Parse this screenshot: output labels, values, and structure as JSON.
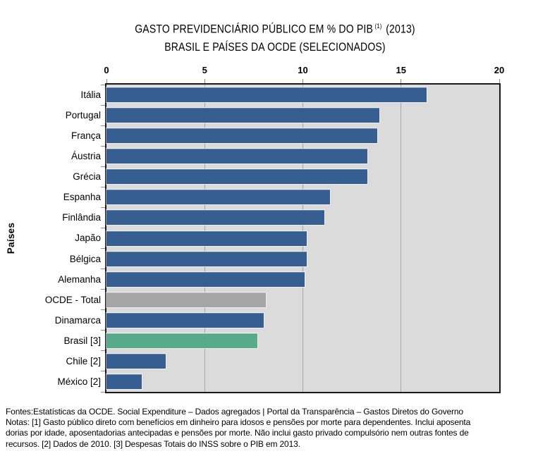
{
  "title": {
    "line1_prefix": "GASTO PREVIDENCIÁRIO PÚBLICO EM % DO PIB",
    "line1_superscript": "(1)",
    "line1_suffix": "(2013)",
    "line2": "BRASIL E PAÍSES DA OCDE (SELECIONADOS)"
  },
  "chart_data": {
    "type": "bar",
    "orientation": "horizontal",
    "title": "GASTO PREVIDENCIÁRIO PÚBLICO EM % DO PIB (1) (2013) BRASIL E PAÍSES DA OCDE (SELECIONADOS)",
    "xlabel": "",
    "ylabel": "Países",
    "xlim": [
      0,
      20
    ],
    "x_ticks": [
      0,
      5,
      10,
      15,
      20
    ],
    "gridlines": [
      5,
      10,
      15
    ],
    "grid": true,
    "legend": false,
    "categories": [
      "Itália",
      "Portugal",
      "França",
      "Áustria",
      "Grécia",
      "Espanha",
      "Finlândia",
      "Japão",
      "Bélgica",
      "Alemanha",
      "OCDE - Total",
      "Dinamarca",
      "Brasil [3]",
      "Chile [2]",
      "México [2]"
    ],
    "values": [
      16.3,
      13.9,
      13.8,
      13.3,
      13.3,
      11.4,
      11.1,
      10.2,
      10.2,
      10.1,
      8.1,
      8.0,
      7.7,
      3.0,
      1.8
    ],
    "bar_colors": [
      "#365E91",
      "#365E91",
      "#365E91",
      "#365E91",
      "#365E91",
      "#365E91",
      "#365E91",
      "#365E91",
      "#365E91",
      "#365E91",
      "#A5A5A5",
      "#365E91",
      "#57AA8C",
      "#365E91",
      "#365E91"
    ]
  },
  "colors": {
    "bar_blue": "#365E91",
    "bar_gray": "#A5A5A5",
    "bar_green": "#57AA8C",
    "plot_background": "#DBDBDB",
    "gridline": "#A6A6A6",
    "plot_border": "#1A1A1A",
    "page_background": "#FFFFFF",
    "text": "#000000"
  },
  "footnotes": {
    "lines": [
      "Fontes:Estatísticas da OCDE. Social Expenditure – Dados agregados | Portal da Transparência – Gastos Diretos do Governo",
      "Notas: [1] Gasto público direto com benefícios em dinheiro para idosos e pensões por morte para dependentes. Inclui aposenta",
      "dorias por idade, aposentadorias antecipadas e pensões por morte. Não inclui gasto privado compulsório nem outras fontes de",
      "recursos. [2] Dados de 2010. [3] Despesas Totais do INSS sobre o PIB em 2013."
    ]
  }
}
